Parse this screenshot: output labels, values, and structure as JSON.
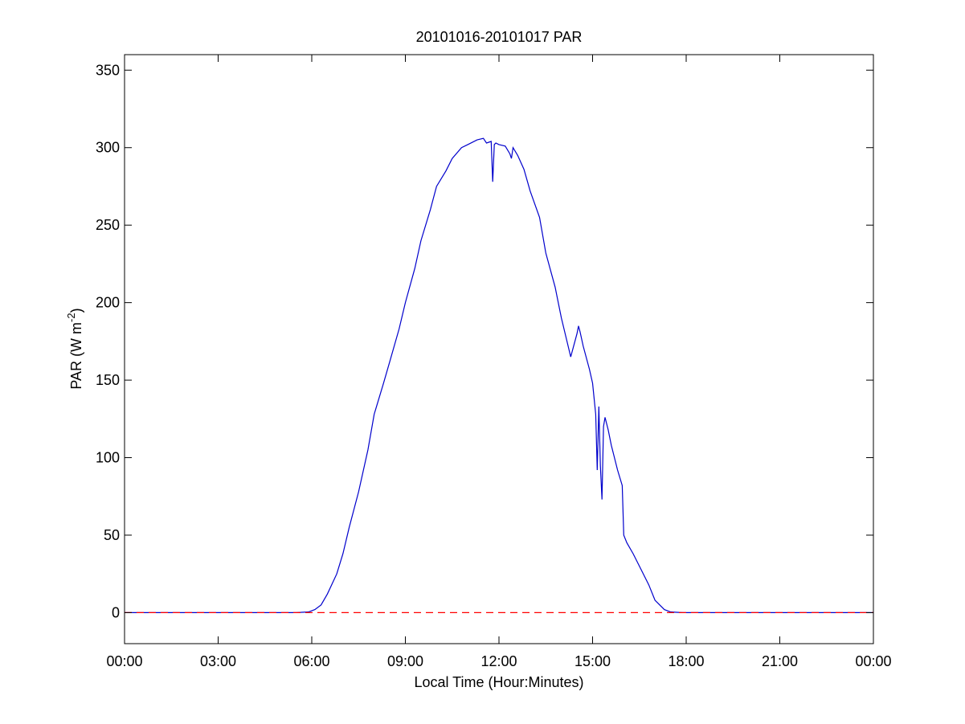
{
  "chart_data": {
    "type": "line",
    "title": "20101016-20101017 PAR",
    "xlabel": "Local Time (Hour:Minutes)",
    "ylabel_main": "PAR (W m",
    "ylabel_sup": "-2",
    "ylabel_tail": ")",
    "xlim": [
      0,
      24
    ],
    "ylim": [
      -20,
      360
    ],
    "x_ticks": [
      0,
      3,
      6,
      9,
      12,
      15,
      18,
      21,
      24
    ],
    "x_tick_labels": [
      "00:00",
      "03:00",
      "06:00",
      "09:00",
      "12:00",
      "15:00",
      "18:00",
      "21:00",
      "00:00"
    ],
    "y_ticks": [
      0,
      50,
      100,
      150,
      200,
      250,
      300,
      350
    ],
    "y_tick_labels": [
      "0",
      "50",
      "100",
      "150",
      "200",
      "250",
      "300",
      "350"
    ],
    "grid": false,
    "colors": {
      "series": "#0000cc",
      "baseline": "#ff0000"
    },
    "series": [
      {
        "style": "solid",
        "x": [
          0,
          5.5,
          5.9,
          6.1,
          6.3,
          6.5,
          6.8,
          7.0,
          7.2,
          7.5,
          7.8,
          8.0,
          8.3,
          8.5,
          8.8,
          9.0,
          9.3,
          9.5,
          9.8,
          10.0,
          10.3,
          10.5,
          10.8,
          11.0,
          11.3,
          11.5,
          11.6,
          11.75,
          11.8,
          11.85,
          11.9,
          12.0,
          12.2,
          12.35,
          12.4,
          12.45,
          12.6,
          12.8,
          13.0,
          13.3,
          13.5,
          13.8,
          14.0,
          14.3,
          14.5,
          14.55,
          14.6,
          14.7,
          14.9,
          15.0,
          15.1,
          15.15,
          15.2,
          15.25,
          15.3,
          15.35,
          15.4,
          15.5,
          15.6,
          15.8,
          15.95,
          16.0,
          16.1,
          16.3,
          16.5,
          16.8,
          17.0,
          17.3,
          17.5,
          17.7,
          17.9,
          18.2,
          24
        ],
        "y": [
          0,
          0,
          0.5,
          2,
          5,
          12,
          25,
          38,
          55,
          78,
          105,
          128,
          148,
          162,
          183,
          200,
          222,
          240,
          260,
          275,
          285,
          293,
          300,
          302,
          305,
          306,
          303,
          304,
          278,
          302,
          303,
          302,
          301,
          296,
          293,
          300,
          295,
          286,
          272,
          255,
          232,
          210,
          190,
          165,
          180,
          185,
          181,
          172,
          157,
          148,
          128,
          92,
          133,
          95,
          73,
          120,
          126,
          118,
          108,
          92,
          82,
          50,
          45,
          38,
          30,
          18,
          8,
          2,
          0.5,
          0.2,
          0,
          0,
          0
        ]
      },
      {
        "style": "dashed",
        "x": [
          0,
          24
        ],
        "y": [
          0,
          0
        ]
      }
    ]
  }
}
